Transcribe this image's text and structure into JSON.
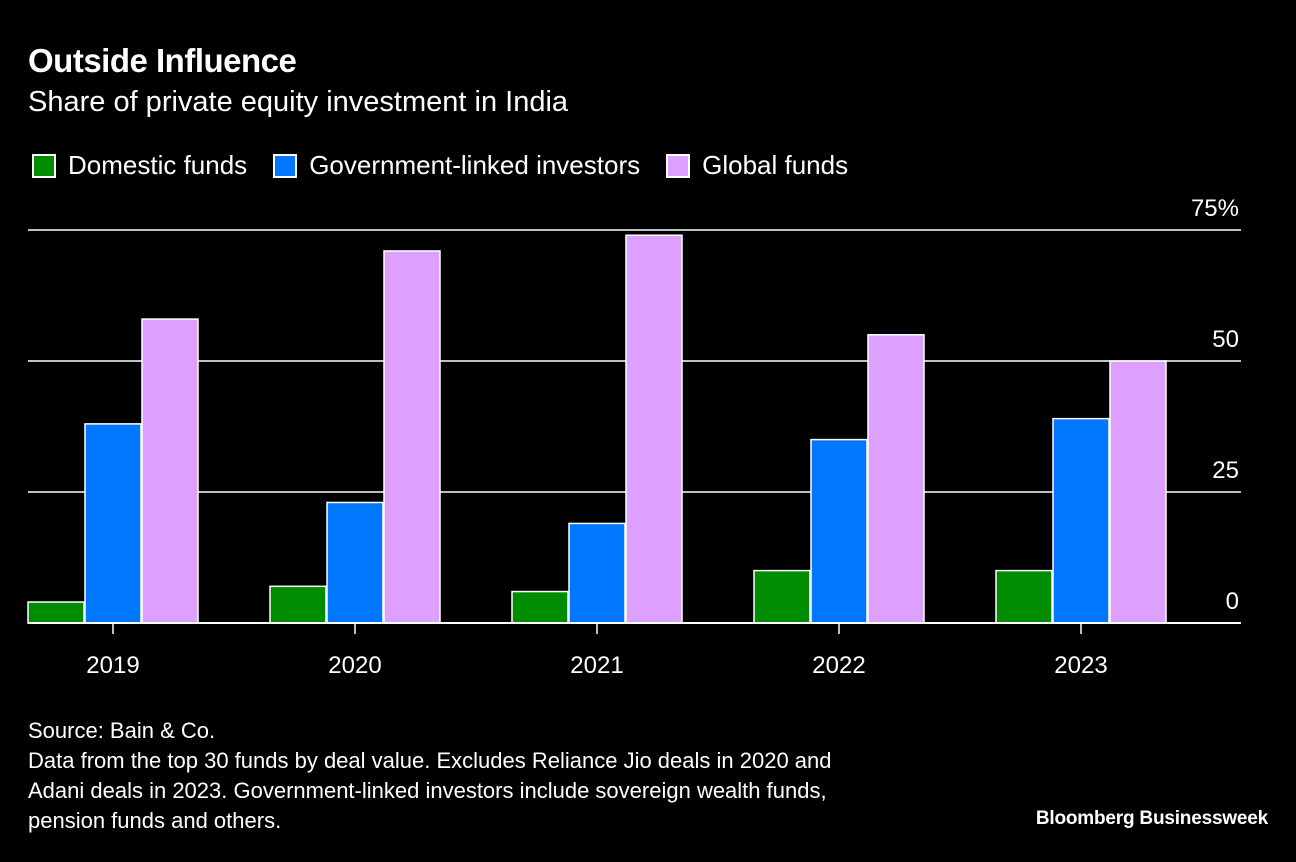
{
  "header": {
    "title": "Outside Influence",
    "subtitle": "Share of private equity investment in India"
  },
  "legend": [
    {
      "label": "Domestic funds",
      "color": "#008c00"
    },
    {
      "label": "Government-linked investors",
      "color": "#0077ff"
    },
    {
      "label": "Global funds",
      "color": "#dda0ff"
    }
  ],
  "footer": {
    "source": "Source: Bain & Co.",
    "note_lines": [
      "Data from the top 30 funds by deal value. Excludes Reliance Jio deals in 2020 and",
      "Adani deals in 2023. Government-linked investors include sovereign wealth funds,",
      "pension funds and others."
    ],
    "brand": "Bloomberg Businessweek"
  },
  "chart_data": {
    "type": "bar",
    "title": "Outside Influence",
    "subtitle": "Share of private equity investment in India",
    "xlabel": "",
    "ylabel": "",
    "categories": [
      "2019",
      "2020",
      "2021",
      "2022",
      "2023"
    ],
    "series": [
      {
        "name": "Domestic funds",
        "color": "#008c00",
        "values": [
          4,
          7,
          6,
          10,
          10
        ]
      },
      {
        "name": "Government-linked investors",
        "color": "#0077ff",
        "values": [
          38,
          23,
          19,
          35,
          39
        ]
      },
      {
        "name": "Global funds",
        "color": "#dda0ff",
        "values": [
          58,
          71,
          74,
          55,
          50
        ]
      }
    ],
    "ylim": [
      0,
      75
    ],
    "yticks": [
      {
        "value": 0,
        "label": "0"
      },
      {
        "value": 25,
        "label": "25"
      },
      {
        "value": 50,
        "label": "50"
      },
      {
        "value": 75,
        "label": "75%"
      }
    ],
    "grid": true,
    "legend_position": "top-left",
    "yaxis_position": "right"
  }
}
